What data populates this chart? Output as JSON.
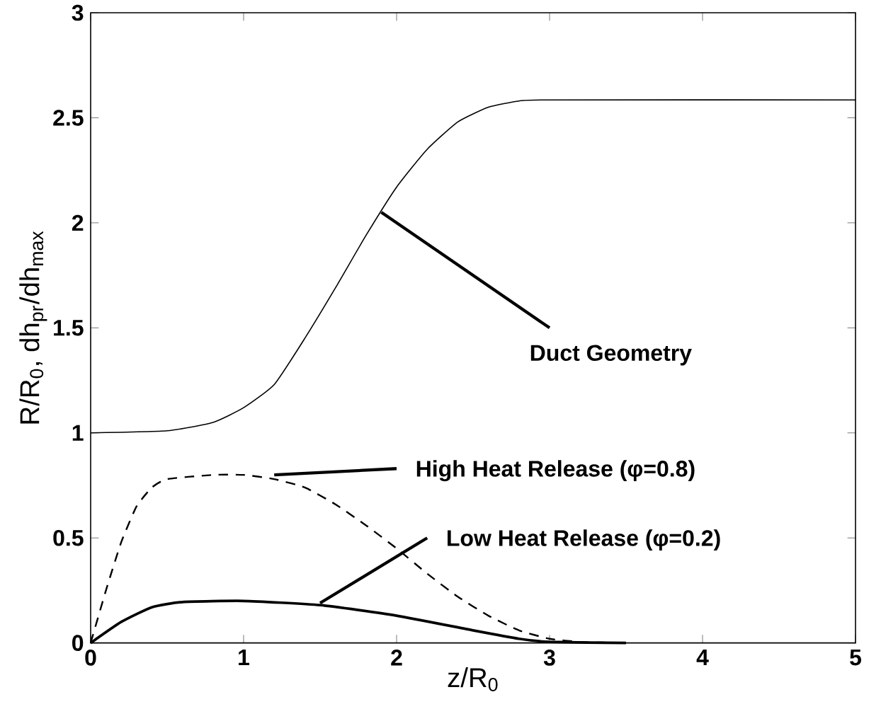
{
  "chart_data": {
    "type": "line",
    "xlabel": "z/R$_{0}$",
    "ylabel": "R/R$_{0}$,  dh$_{pr}$/dh$_{max}$",
    "xlim": [
      0,
      5
    ],
    "ylim": [
      0,
      3
    ],
    "xticks": [
      0,
      1,
      2,
      3,
      4,
      5
    ],
    "yticks": [
      0,
      0.5,
      1,
      1.5,
      2,
      2.5,
      3
    ],
    "grid": false,
    "marker": "none",
    "series": [
      {
        "color": "#000000",
        "line_style": "solid",
        "x": [
          0,
          0.5,
          0.8,
          1.0,
          1.2,
          1.4,
          1.6,
          1.8,
          2.0,
          2.2,
          2.4,
          2.6,
          2.8,
          3.0,
          5.0
        ],
        "values": [
          1.0,
          1.01,
          1.05,
          1.12,
          1.23,
          1.45,
          1.69,
          1.94,
          2.17,
          2.35,
          2.48,
          2.55,
          2.58,
          2.585,
          2.585
        ]
      },
      {
        "color": "#000000",
        "line_style": "dashed",
        "x": [
          0,
          0.1,
          0.2,
          0.3,
          0.4,
          0.5,
          0.8,
          1.0,
          1.2,
          1.4,
          1.6,
          1.8,
          2.0,
          2.2,
          2.4,
          2.6,
          2.8,
          3.0,
          3.2,
          3.5
        ],
        "values": [
          0,
          0.25,
          0.48,
          0.65,
          0.74,
          0.78,
          0.8,
          0.8,
          0.78,
          0.74,
          0.66,
          0.56,
          0.45,
          0.33,
          0.22,
          0.13,
          0.06,
          0.02,
          0.005,
          0
        ]
      },
      {
        "color": "#000000",
        "line_style": "solid",
        "x": [
          0,
          0.2,
          0.4,
          0.6,
          1.0,
          1.5,
          2.0,
          2.5,
          2.8,
          3.0,
          3.5
        ],
        "values": [
          0,
          0.1,
          0.17,
          0.195,
          0.2,
          0.18,
          0.13,
          0.06,
          0.02,
          0.005,
          0
        ]
      }
    ],
    "annotations": [
      {
        "text": "Duct Geometry",
        "x": 1.9,
        "y": 2.05
      },
      {
        "text": "High Heat Release (φ=0.8)",
        "x": 1.2,
        "y": 0.8
      },
      {
        "text": "Low Heat Release (φ=0.2)",
        "x": 1.5,
        "y": 0.19
      }
    ]
  }
}
